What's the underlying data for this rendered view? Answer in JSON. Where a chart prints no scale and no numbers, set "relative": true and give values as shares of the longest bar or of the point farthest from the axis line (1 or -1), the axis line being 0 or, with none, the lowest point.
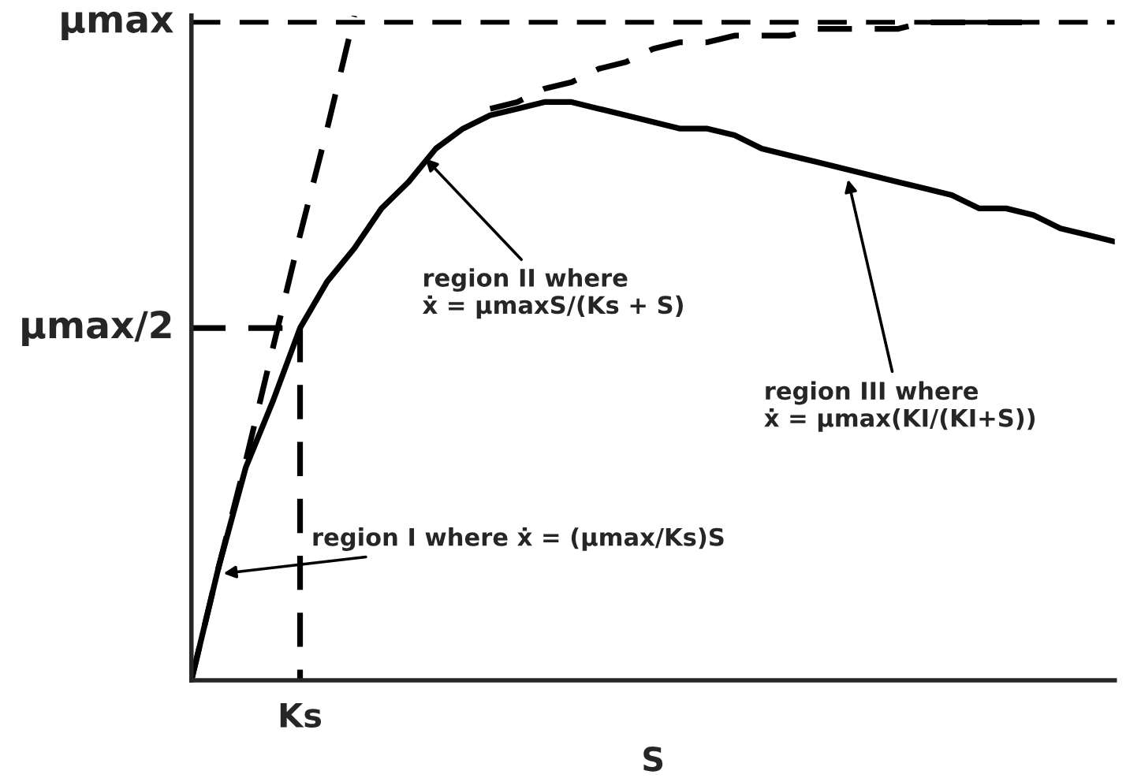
{
  "chart_data": {
    "type": "line",
    "relative": true,
    "xlabel": "S",
    "legend": false,
    "marker": "none",
    "categories": [
      null,
      null,
      null,
      null,
      null,
      null,
      null,
      null,
      null,
      null,
      null,
      null,
      null,
      null,
      null,
      null,
      null,
      null,
      null,
      null,
      null,
      null,
      null,
      null,
      null,
      null,
      null,
      null,
      null,
      null,
      null,
      null,
      null,
      null,
      null
    ],
    "series": [
      {
        "color": "#000000",
        "line_style": "solid",
        "values": [
          0,
          0.17,
          0.32,
          0.42,
          0.53,
          0.6,
          0.65,
          0.71,
          0.75,
          0.8,
          0.83,
          0.85,
          0.86,
          0.87,
          0.87,
          0.86,
          0.85,
          0.84,
          0.83,
          0.83,
          0.82,
          0.8,
          0.79,
          0.78,
          0.77,
          0.76,
          0.75,
          0.74,
          0.73,
          0.71,
          0.71,
          0.7,
          0.68,
          0.67,
          0.66
        ]
      },
      {
        "color": "#000000",
        "line_style": "dashed",
        "values": [
          null,
          null,
          null,
          null,
          null,
          null,
          null,
          null,
          null,
          null,
          null,
          0.86,
          0.87,
          0.89,
          0.9,
          0.92,
          0.93,
          0.95,
          0.96,
          0.96,
          0.97,
          0.97,
          0.97,
          0.98,
          0.98,
          0.98,
          0.98,
          0.99,
          0.99,
          0.99,
          0.99,
          0.99,
          null,
          null,
          null
        ]
      },
      {
        "color": "#000000",
        "line_style": "dashed",
        "values": [
          0,
          0.17,
          0.33,
          0.5,
          0.67,
          0.83,
          1,
          null,
          null,
          null,
          null,
          null,
          null,
          null,
          null,
          null,
          null,
          null,
          null,
          null,
          null,
          null,
          null,
          null,
          null,
          null,
          null,
          null,
          null,
          null,
          null,
          null,
          null,
          null,
          null
        ]
      },
      {
        "color": "#000000",
        "line_style": "dashed",
        "values": [
          0.53,
          0.53,
          0.53,
          0.53,
          0.53,
          null,
          null,
          null,
          null,
          null,
          null,
          null,
          null,
          null,
          null,
          null,
          null,
          null,
          null,
          null,
          null,
          null,
          null,
          null,
          null,
          null,
          null,
          null,
          null,
          null,
          null,
          null,
          null,
          null,
          null
        ]
      }
    ],
    "ref_lines": [
      {
        "axis": "y",
        "value": 0.99,
        "label": "μmax",
        "color": "#000000",
        "line_style": "dashed"
      }
    ],
    "annotations": [
      "μmax/2",
      "Ks",
      "region I where ẋ = (μmax/Ks)S",
      "region II where\nẋ = μmaxS/(Ks + S)",
      "region III where\nẋ = μmax(KI/(KI+S))"
    ]
  }
}
